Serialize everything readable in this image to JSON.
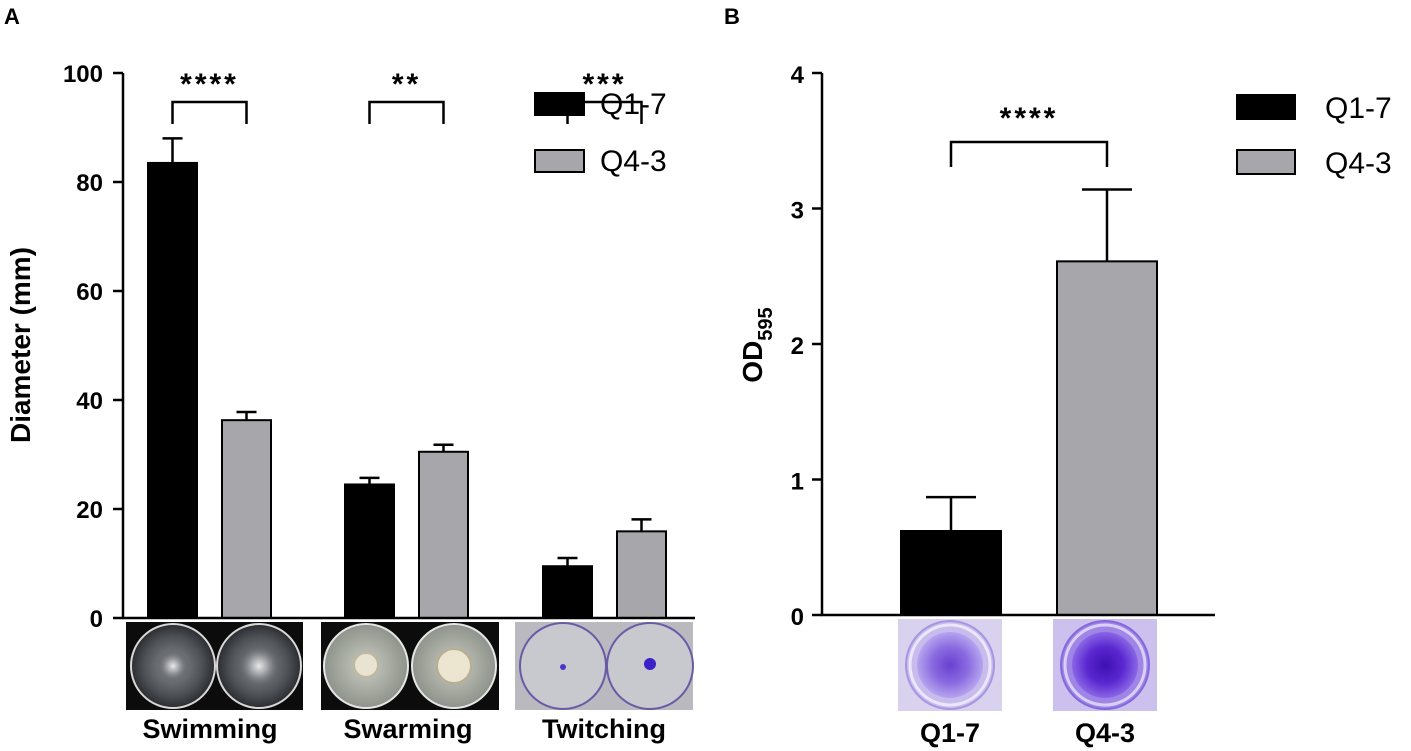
{
  "colors": {
    "q1": "#000000",
    "q4": "#a7a6aa",
    "axis": "#000000"
  },
  "chart_data": [
    {
      "panel": "A",
      "type": "bar",
      "ylabel": "Diameter (mm)",
      "xlabel": "",
      "ylim": [
        0,
        100
      ],
      "yticks": [
        "0",
        "20",
        "40",
        "60",
        "80",
        "100"
      ],
      "categories": [
        "Swimming",
        "Swarming",
        "Twitching"
      ],
      "series": [
        {
          "name": "Q1-7",
          "values": [
            83.5,
            24.5,
            9.5
          ],
          "errors": [
            4.5,
            1.2,
            1.5
          ]
        },
        {
          "name": "Q4-3",
          "values": [
            36.3,
            30.5,
            15.9
          ],
          "errors": [
            1.5,
            1.3,
            2.2
          ]
        }
      ],
      "significance": [
        "****",
        "**",
        "***"
      ],
      "legend": [
        "Q1-7",
        "Q4-3"
      ],
      "legend_position": "top-right"
    },
    {
      "panel": "B",
      "type": "bar",
      "ylabel": "OD",
      "ylabel_subscript": "595",
      "xlabel": "",
      "ylim": [
        0,
        4
      ],
      "yticks": [
        "0",
        "1",
        "2",
        "3",
        "4"
      ],
      "categories": [
        "Q1-7",
        "Q4-3"
      ],
      "values": [
        0.62,
        2.61
      ],
      "errors": [
        0.25,
        0.53
      ],
      "significance": [
        "****"
      ],
      "legend": [
        "Q1-7",
        "Q4-3"
      ],
      "legend_position": "top-right"
    }
  ]
}
